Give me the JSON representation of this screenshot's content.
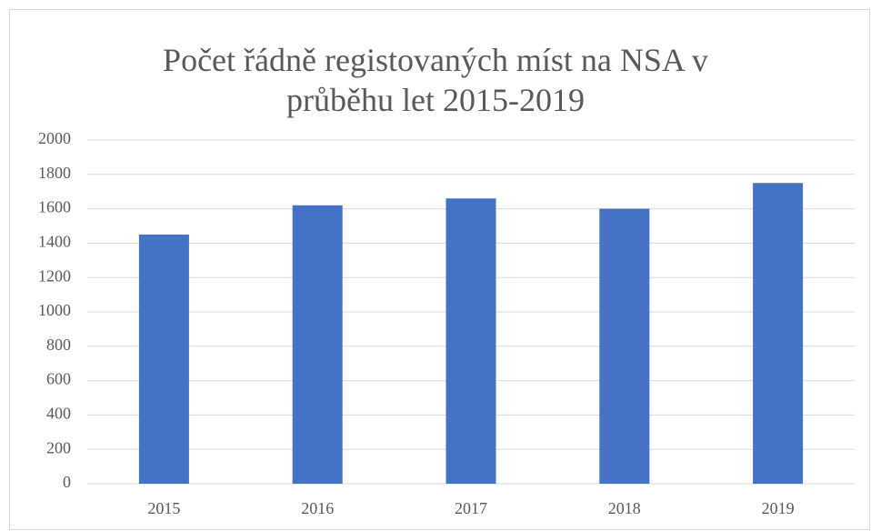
{
  "chart_data": {
    "type": "bar",
    "title": "Počet řádně registovaných míst na NSA v průběhu let 2015-2019",
    "categories": [
      "2015",
      "2016",
      "2017",
      "2018",
      "2019"
    ],
    "values": [
      1450,
      1620,
      1660,
      1600,
      1750
    ],
    "color": "#4472c4",
    "ylim": [
      0,
      2000
    ],
    "yticks": [
      0,
      200,
      400,
      600,
      800,
      1000,
      1200,
      1400,
      1600,
      1800,
      2000
    ],
    "grid": true
  }
}
